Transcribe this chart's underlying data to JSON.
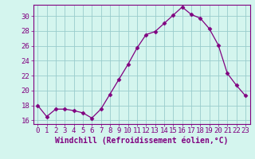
{
  "x": [
    0,
    1,
    2,
    3,
    4,
    5,
    6,
    7,
    8,
    9,
    10,
    11,
    12,
    13,
    14,
    15,
    16,
    17,
    18,
    19,
    20,
    21,
    22,
    23
  ],
  "y": [
    18.0,
    16.5,
    17.5,
    17.5,
    17.3,
    17.0,
    16.3,
    17.5,
    19.5,
    21.5,
    23.5,
    25.7,
    27.5,
    27.9,
    29.0,
    30.1,
    31.2,
    30.2,
    29.7,
    28.3,
    26.1,
    22.3,
    20.7,
    19.3
  ],
  "line_color": "#800080",
  "marker": "D",
  "marker_size": 2.5,
  "bg_color": "#d4f5ee",
  "grid_color": "#99cccc",
  "xlabel": "Windchill (Refroidissement éolien,°C)",
  "ylim": [
    15.5,
    31.5
  ],
  "yticks": [
    16,
    18,
    20,
    22,
    24,
    26,
    28,
    30
  ],
  "xticks": [
    0,
    1,
    2,
    3,
    4,
    5,
    6,
    7,
    8,
    9,
    10,
    11,
    12,
    13,
    14,
    15,
    16,
    17,
    18,
    19,
    20,
    21,
    22,
    23
  ],
  "xlabel_fontsize": 7,
  "tick_fontsize": 6.5
}
